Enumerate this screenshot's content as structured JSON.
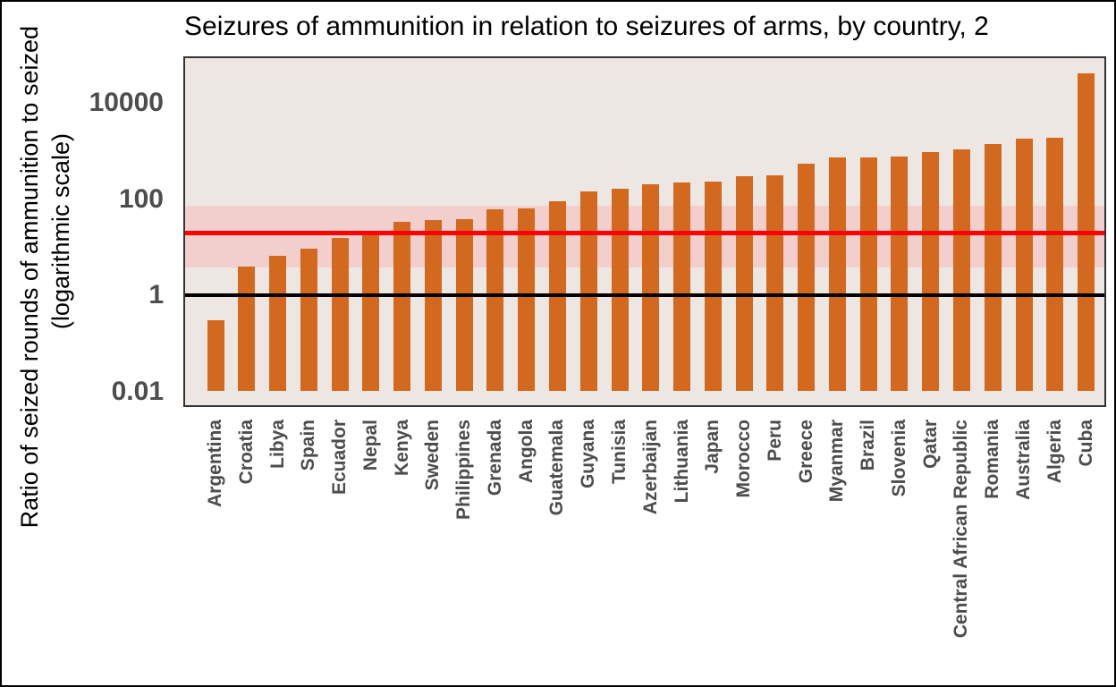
{
  "title": "Seizures of ammunition in relation to seizures of arms, by country, 2",
  "y_axis": {
    "label_line1": "Ratio of seized rounds of ammunition to seized",
    "label_line2": "(logarithmic scale)",
    "tick_labels": [
      "10000",
      "100",
      "1",
      "0.01"
    ],
    "tick_values": [
      10000,
      100,
      1,
      0.01
    ]
  },
  "chart_data": {
    "type": "bar",
    "title": "Seizures of ammunition in relation to seizures of arms, by country, 2",
    "ylabel": "Ratio of seized rounds of ammunition to seized (logarithmic scale)",
    "xlabel": "",
    "yscale": "log",
    "ylim": [
      0.005,
      90000
    ],
    "bar_base": 0.01,
    "grid": false,
    "legend": "none",
    "categories": [
      "Argentina",
      "Croatia",
      "Libya",
      "Spain",
      "Ecuador",
      "Nepal",
      "Kenya",
      "Sweden",
      "Philippines",
      "Grenada",
      "Angola",
      "Guatemala",
      "Guyana",
      "Tunisia",
      "Azerbaijan",
      "Lithuania",
      "Japan",
      "Morocco",
      "Peru",
      "Greece",
      "Myanmar",
      "Brazil",
      "Slovenia",
      "Qatar",
      "Central African Republic",
      "Romania",
      "Australia",
      "Algeria",
      "Cuba"
    ],
    "values": [
      0.3,
      4,
      6.6,
      9.3,
      15.5,
      18,
      34,
      36,
      38,
      62,
      65,
      91,
      145,
      165,
      205,
      220,
      235,
      298,
      308,
      540,
      720,
      740,
      760,
      950,
      1060,
      1400,
      1800,
      1880,
      41000
    ],
    "bar_color": "#D2691E",
    "plot_bg": "#EDE7E4",
    "band": {
      "low": 3.7,
      "high": 72,
      "color": "#F2CECC"
    },
    "reference_lines": [
      {
        "name": "parity-line",
        "value": 1,
        "color": "#000000",
        "thickness": 4
      },
      {
        "name": "average-ratio-line",
        "value": 20,
        "color": "#FF0000",
        "thickness": 5
      }
    ]
  }
}
